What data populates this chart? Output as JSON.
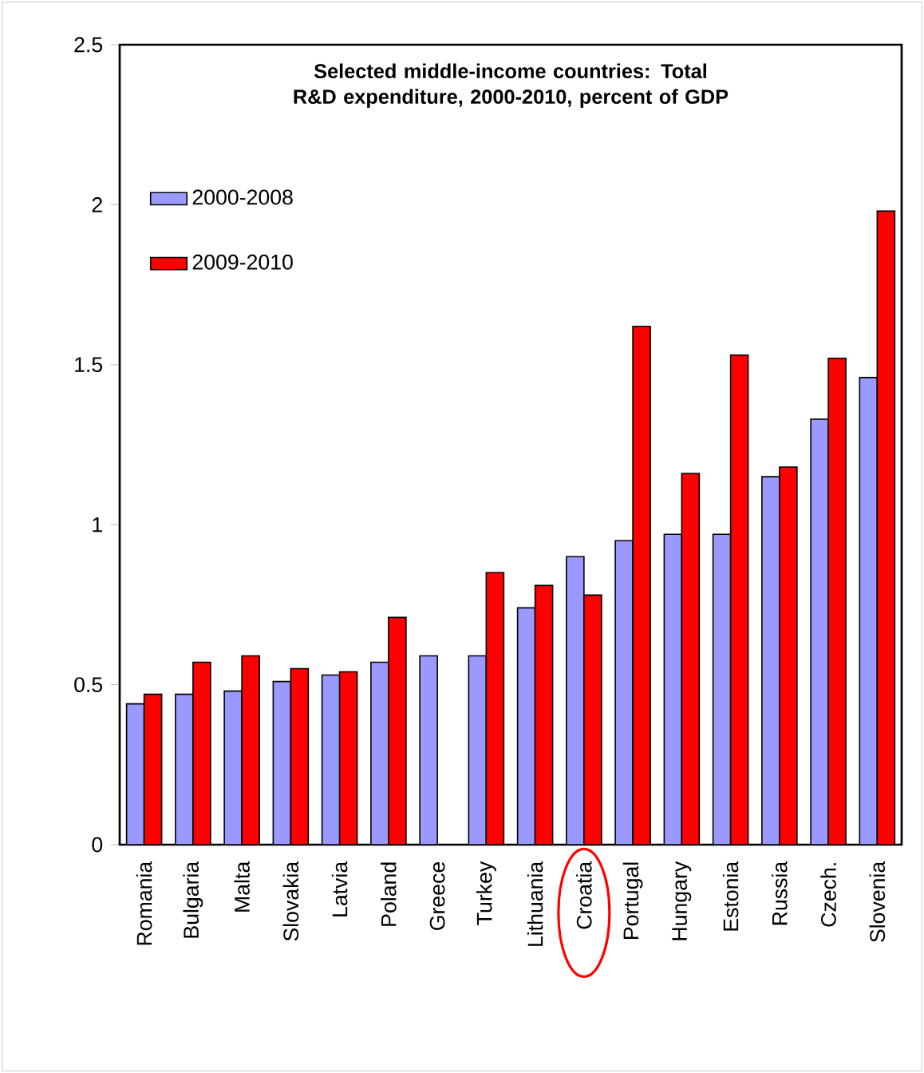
{
  "chart_data": {
    "type": "bar",
    "title": "Selected middle-income countries: Total R&D expenditure, 2000-2010, percent of GDP",
    "categories": [
      "Romania",
      "Bulgaria",
      "Malta",
      "Slovakia",
      "Latvia",
      "Poland",
      "Greece",
      "Turkey",
      "Lithuania",
      "Croatia",
      "Portugal",
      "Hungary",
      "Estonia",
      "Russia",
      "Czech.",
      "Slovenia"
    ],
    "series": [
      {
        "name": "2000-2008",
        "color": "#9999ff",
        "values": [
          0.44,
          0.47,
          0.48,
          0.51,
          0.53,
          0.57,
          0.59,
          0.59,
          0.74,
          0.9,
          0.95,
          0.97,
          0.97,
          1.15,
          1.33,
          1.46
        ]
      },
      {
        "name": "2009-2010",
        "color": "#ff0000",
        "values": [
          0.47,
          0.57,
          0.59,
          0.55,
          0.54,
          0.71,
          null,
          0.85,
          0.81,
          0.78,
          1.62,
          1.16,
          1.53,
          1.18,
          1.52,
          1.98
        ]
      }
    ],
    "ylim": [
      0,
      2.5
    ],
    "yticks": [
      0,
      0.5,
      1,
      1.5,
      2,
      2.5
    ],
    "legend": "top left"
  }
}
